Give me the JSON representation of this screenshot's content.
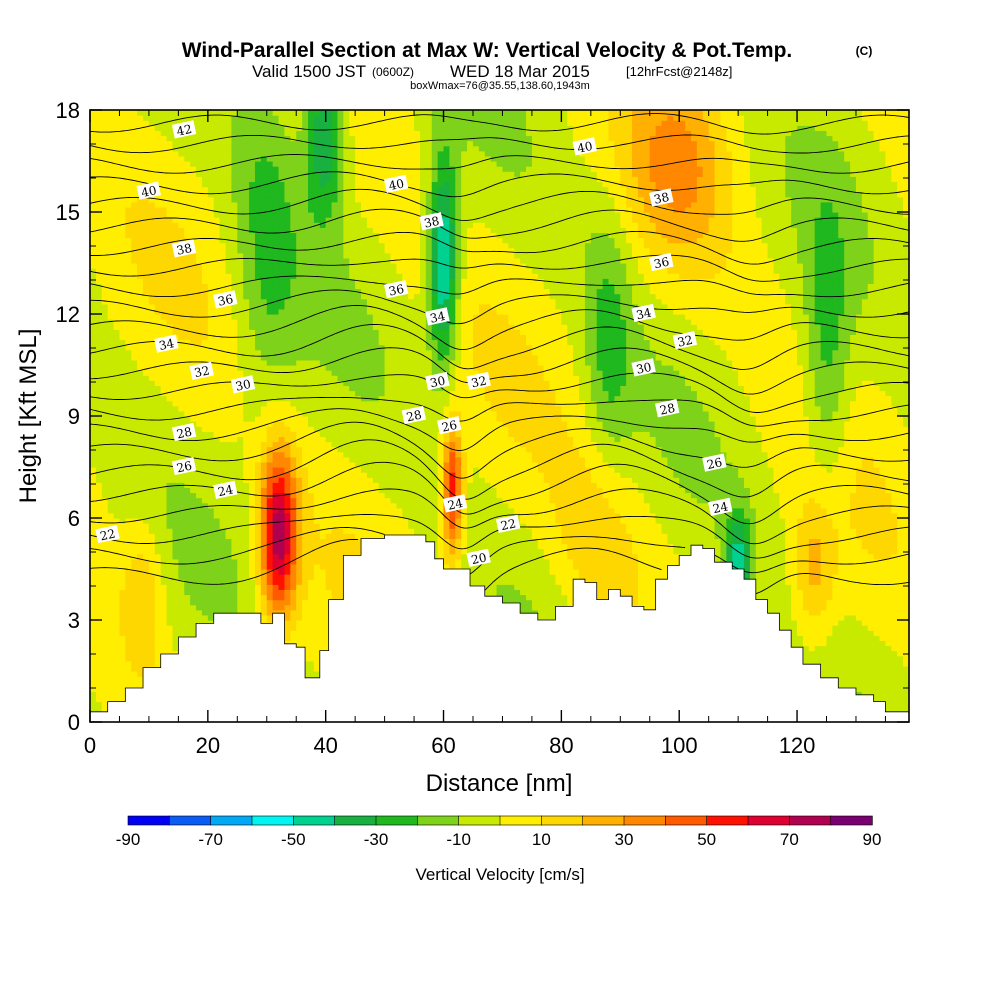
{
  "chart_data": {
    "type": "heatmap",
    "title": "Wind-Parallel Section at Max W: Vertical Velocity & Pot.Temp.",
    "title_unit": "(C)",
    "subtitle_prefix": "Valid 1500 JST",
    "subtitle_utc": "(0600Z)",
    "subtitle_date": "WED 18 Mar 2015",
    "subtitle_run": "[12hrFcst@2148z]",
    "subtitle2": "boxWmax=76@35.55,138.60,1943m",
    "xlabel": "Distance [nm]",
    "ylabel": "Height [Kft MSL]",
    "xlim": [
      0,
      139
    ],
    "ylim": [
      0,
      18
    ],
    "x_ticks": [
      0,
      20,
      40,
      60,
      80,
      100,
      120
    ],
    "y_ticks": [
      0,
      3,
      6,
      9,
      12,
      15,
      18
    ],
    "colorbar": {
      "label": "Vertical Velocity [cm/s]",
      "tick_values": [
        -90,
        -70,
        -50,
        -30,
        -10,
        10,
        30,
        50,
        70,
        90
      ],
      "colors": [
        "#0000f5",
        "#0a5cf5",
        "#00a8f5",
        "#00f5f0",
        "#00d090",
        "#18b040",
        "#1fb81f",
        "#7fd21a",
        "#c8ea00",
        "#ffee00",
        "#ffd700",
        "#ffb000",
        "#ff8800",
        "#ff5a00",
        "#ff1000",
        "#dd0030",
        "#b00050",
        "#780070"
      ]
    },
    "vertical_velocity_features": [
      {
        "type": "updraft",
        "x": 32,
        "y": 5.5,
        "value": 76,
        "xw": 2.3,
        "yh": 1.8
      },
      {
        "type": "updraft",
        "x": 61.5,
        "y": 6.8,
        "value": 60,
        "xw": 1.2,
        "yh": 1.4
      },
      {
        "type": "downdraft",
        "x": 60,
        "y": 13.5,
        "value": -55,
        "xw": 1.8,
        "yh": 2.2
      },
      {
        "type": "downdraft",
        "x": 40,
        "y": 17.5,
        "value": -45,
        "xw": 2.5,
        "yh": 1.8
      },
      {
        "type": "downdraft",
        "x": 110,
        "y": 4.4,
        "value": -45,
        "xw": 1.6,
        "yh": 1.2
      },
      {
        "type": "downdraft",
        "x": 125,
        "y": 10.5,
        "value": -25,
        "xw": 2.8,
        "yh": 3.0
      },
      {
        "type": "downdraft",
        "x": 88,
        "y": 11,
        "value": -20,
        "xw": 3.0,
        "yh": 3.0
      },
      {
        "type": "downdraft",
        "x": 30,
        "y": 14,
        "value": -20,
        "xw": 4.0,
        "yh": 4.0
      },
      {
        "type": "updraft",
        "x": 100,
        "y": 16.5,
        "value": 25,
        "xw": 6.0,
        "yh": 2.0
      },
      {
        "type": "updraft",
        "x": 123,
        "y": 4.5,
        "value": 25,
        "xw": 2.5,
        "yh": 1.5
      },
      {
        "type": "updraft",
        "x": 9,
        "y": 3.8,
        "value": 20,
        "xw": 2.5,
        "yh": 1.5
      },
      {
        "type": "updraft",
        "x": 86,
        "y": 5.5,
        "value": 15,
        "xw": 5.0,
        "yh": 2.0
      }
    ],
    "terrain_height": [
      [
        0,
        0.3
      ],
      [
        3,
        0.6
      ],
      [
        6,
        1.0
      ],
      [
        9,
        1.6
      ],
      [
        12,
        2.0
      ],
      [
        15,
        2.5
      ],
      [
        18,
        2.9
      ],
      [
        21,
        3.2
      ],
      [
        24,
        3.2
      ],
      [
        27,
        3.2
      ],
      [
        29,
        2.9
      ],
      [
        31,
        3.2
      ],
      [
        33,
        2.3
      ],
      [
        35,
        2.2
      ],
      [
        36.5,
        1.3
      ],
      [
        39,
        2.1
      ],
      [
        40.5,
        3.6
      ],
      [
        43,
        4.9
      ],
      [
        46,
        5.4
      ],
      [
        50,
        5.5
      ],
      [
        54,
        5.5
      ],
      [
        57,
        5.3
      ],
      [
        58.5,
        4.8
      ],
      [
        60,
        4.5
      ],
      [
        62,
        4.5
      ],
      [
        64.5,
        4.0
      ],
      [
        67,
        3.7
      ],
      [
        70,
        3.5
      ],
      [
        73,
        3.2
      ],
      [
        76,
        3.0
      ],
      [
        79,
        3.4
      ],
      [
        82,
        4.2
      ],
      [
        84,
        4.1
      ],
      [
        86,
        3.6
      ],
      [
        88,
        3.9
      ],
      [
        90,
        3.7
      ],
      [
        92,
        3.4
      ],
      [
        94,
        3.3
      ],
      [
        96,
        4.2
      ],
      [
        98,
        4.6
      ],
      [
        100,
        4.9
      ],
      [
        102,
        5.2
      ],
      [
        104,
        5.1
      ],
      [
        106,
        4.7
      ],
      [
        109,
        4.5
      ],
      [
        111,
        4.2
      ],
      [
        113,
        3.6
      ],
      [
        115,
        3.2
      ],
      [
        117,
        2.7
      ],
      [
        119,
        2.2
      ],
      [
        121,
        1.7
      ],
      [
        124,
        1.3
      ],
      [
        127,
        1.0
      ],
      [
        130,
        0.8
      ],
      [
        133,
        0.6
      ],
      [
        135,
        0.3
      ],
      [
        139,
        0.3
      ]
    ],
    "theta_contours": {
      "min": 20,
      "max": 42,
      "interval": 1,
      "labels": [
        {
          "text": "42",
          "x": 16,
          "y": 17.4
        },
        {
          "text": "40",
          "x": 10,
          "y": 15.6
        },
        {
          "text": "38",
          "x": 16,
          "y": 13.9
        },
        {
          "text": "36",
          "x": 23,
          "y": 12.4
        },
        {
          "text": "34",
          "x": 13,
          "y": 11.1
        },
        {
          "text": "32",
          "x": 19,
          "y": 10.3
        },
        {
          "text": "30",
          "x": 26,
          "y": 9.9
        },
        {
          "text": "28",
          "x": 16,
          "y": 8.5
        },
        {
          "text": "26",
          "x": 16,
          "y": 7.5
        },
        {
          "text": "24",
          "x": 23,
          "y": 6.8
        },
        {
          "text": "22",
          "x": 3,
          "y": 5.5
        },
        {
          "text": "40",
          "x": 52,
          "y": 15.8
        },
        {
          "text": "38",
          "x": 58,
          "y": 14.7
        },
        {
          "text": "36",
          "x": 52,
          "y": 12.7
        },
        {
          "text": "34",
          "x": 59,
          "y": 11.9
        },
        {
          "text": "30",
          "x": 59,
          "y": 10.0
        },
        {
          "text": "32",
          "x": 66,
          "y": 10.0
        },
        {
          "text": "28",
          "x": 55,
          "y": 9.0
        },
        {
          "text": "26",
          "x": 61,
          "y": 8.7
        },
        {
          "text": "24",
          "x": 62,
          "y": 6.4
        },
        {
          "text": "22",
          "x": 71,
          "y": 5.8
        },
        {
          "text": "20",
          "x": 66,
          "y": 4.8
        },
        {
          "text": "40",
          "x": 84,
          "y": 16.9
        },
        {
          "text": "38",
          "x": 97,
          "y": 15.4
        },
        {
          "text": "36",
          "x": 97,
          "y": 13.5
        },
        {
          "text": "34",
          "x": 94,
          "y": 12.0
        },
        {
          "text": "32",
          "x": 101,
          "y": 11.2
        },
        {
          "text": "30",
          "x": 94,
          "y": 10.4
        },
        {
          "text": "28",
          "x": 98,
          "y": 9.2
        },
        {
          "text": "26",
          "x": 106,
          "y": 7.6
        },
        {
          "text": "24",
          "x": 107,
          "y": 6.3
        }
      ]
    }
  }
}
